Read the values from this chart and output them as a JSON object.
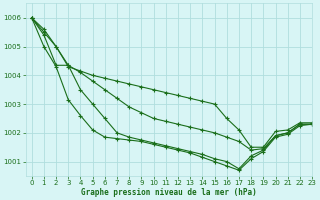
{
  "bg_color": "#d8f5f5",
  "grid_color": "#b0dede",
  "line_color": "#1a6e1a",
  "xlabel": "Graphe pression niveau de la mer (hPa)",
  "xlim": [
    -0.5,
    23
  ],
  "ylim": [
    1000.5,
    1006.5
  ],
  "yticks": [
    1001,
    1002,
    1003,
    1004,
    1005,
    1006
  ],
  "xticks": [
    0,
    1,
    2,
    3,
    4,
    5,
    6,
    7,
    8,
    9,
    10,
    11,
    12,
    13,
    14,
    15,
    16,
    17,
    18,
    19,
    20,
    21,
    22,
    23
  ],
  "series": [
    [
      1006.0,
      1005.6,
      1005.0,
      1004.3,
      1004.15,
      1004.0,
      1003.9,
      1003.8,
      1003.7,
      1003.6,
      1003.5,
      1003.4,
      1003.3,
      1003.2,
      1003.1,
      1003.0,
      1002.5,
      1002.1,
      1001.5,
      1001.5,
      1002.05,
      1002.1,
      1002.35,
      1002.35
    ],
    [
      1006.0,
      1005.5,
      1005.0,
      1004.35,
      1004.1,
      1003.8,
      1003.5,
      1003.2,
      1002.9,
      1002.7,
      1002.5,
      1002.4,
      1002.3,
      1002.2,
      1002.1,
      1002.0,
      1001.85,
      1001.7,
      1001.4,
      1001.45,
      1001.9,
      1002.0,
      1002.3,
      1002.3
    ],
    [
      1006.0,
      1005.4,
      1004.35,
      1004.35,
      1003.5,
      1003.0,
      1002.5,
      1002.0,
      1001.85,
      1001.75,
      1001.65,
      1001.55,
      1001.45,
      1001.35,
      1001.25,
      1001.1,
      1001.0,
      1000.75,
      1001.2,
      1001.4,
      1001.9,
      1002.0,
      1002.3,
      1002.3
    ],
    [
      1006.0,
      1005.0,
      1004.3,
      1003.15,
      1002.6,
      1002.1,
      1001.85,
      1001.8,
      1001.75,
      1001.7,
      1001.6,
      1001.5,
      1001.4,
      1001.3,
      1001.15,
      1001.0,
      1000.85,
      1000.7,
      1001.1,
      1001.35,
      1001.85,
      1001.95,
      1002.25,
      1002.3
    ]
  ]
}
